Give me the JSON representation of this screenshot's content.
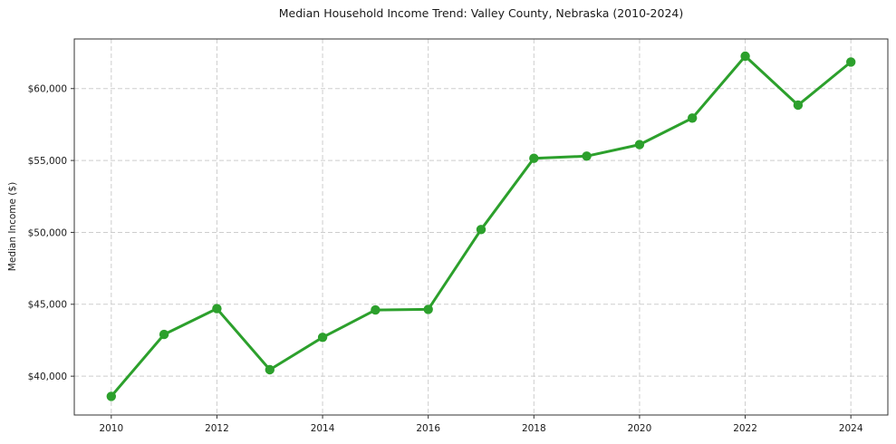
{
  "chart_data": {
    "type": "line",
    "title": "Median Household Income Trend: Valley County, Nebraska (2010-2024)",
    "xlabel": "",
    "ylabel": "Median Income ($)",
    "x": [
      2010,
      2011,
      2012,
      2013,
      2014,
      2015,
      2016,
      2017,
      2018,
      2019,
      2020,
      2021,
      2022,
      2023,
      2024
    ],
    "series": [
      {
        "name": "Median Household Income",
        "values": [
          38600,
          42900,
          44700,
          40450,
          42700,
          44600,
          44650,
          50200,
          55150,
          55300,
          56100,
          57950,
          62250,
          58850,
          61850
        ]
      }
    ],
    "xlim": [
      2009.3,
      2024.7
    ],
    "ylim": [
      37300,
      63450
    ],
    "x_ticks": [
      2010,
      2012,
      2014,
      2016,
      2018,
      2020,
      2022,
      2024
    ],
    "x_tick_labels": [
      "2010",
      "2012",
      "2014",
      "2016",
      "2018",
      "2020",
      "2022",
      "2024"
    ],
    "y_ticks": [
      40000,
      45000,
      50000,
      55000,
      60000
    ],
    "y_tick_labels": [
      "$40,000",
      "$45,000",
      "$50,000",
      "$55,000",
      "$60,000"
    ],
    "grid": "dashed-both-axes",
    "legend_position": "none",
    "marker": "circle",
    "colors": {
      "line": "#2ca02c",
      "marker": "#2ca02c",
      "grid": "#cdcdcd",
      "spine": "#333333",
      "text": "#1a1a1a",
      "background": "#ffffff"
    }
  }
}
